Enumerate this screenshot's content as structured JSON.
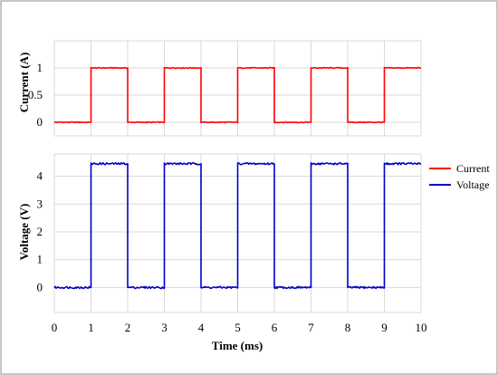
{
  "chart_data": [
    {
      "type": "line",
      "ylabel": "Current (A)",
      "xlabel": "",
      "ylim": [
        -0.25,
        1.5
      ],
      "yticks": [
        0,
        0.5,
        1
      ],
      "ytick_labels": [
        "0",
        "0.5",
        "1"
      ],
      "xlim": [
        0,
        10
      ],
      "grid": true,
      "series": [
        {
          "name": "Current",
          "color": "#ff0000",
          "x": [
            0,
            1,
            1,
            2,
            2,
            3,
            3,
            4,
            4,
            5,
            5,
            6,
            6,
            7,
            7,
            8,
            8,
            9,
            9,
            10
          ],
          "y": [
            0,
            0,
            1,
            1,
            0,
            0,
            1,
            1,
            0,
            0,
            1,
            1,
            0,
            0,
            1,
            1,
            0,
            0,
            1,
            1
          ]
        }
      ]
    },
    {
      "type": "line",
      "ylabel": "Voltage (V)",
      "xlabel": "Time (ms)",
      "ylim": [
        -0.9,
        4.8
      ],
      "yticks": [
        0,
        1,
        2,
        3,
        4
      ],
      "ytick_labels": [
        "0",
        "1",
        "2",
        "3",
        "4"
      ],
      "xlim": [
        0,
        10
      ],
      "xticks": [
        0,
        1,
        2,
        3,
        4,
        5,
        6,
        7,
        8,
        9,
        10
      ],
      "xtick_labels": [
        "0",
        "1",
        "2",
        "3",
        "4",
        "5",
        "6",
        "7",
        "8",
        "9",
        "10"
      ],
      "grid": true,
      "series": [
        {
          "name": "Voltage",
          "color": "#0000cc",
          "x": [
            0,
            1,
            1,
            2,
            2,
            3,
            3,
            4,
            4,
            5,
            5,
            6,
            6,
            7,
            7,
            8,
            8,
            9,
            9,
            10
          ],
          "y": [
            0,
            0,
            4.45,
            4.45,
            0,
            0,
            4.45,
            4.45,
            0,
            0,
            4.45,
            4.45,
            0,
            0,
            4.45,
            4.45,
            0,
            0,
            4.45,
            4.45
          ]
        }
      ]
    }
  ],
  "legend": {
    "placement": "right",
    "items": [
      {
        "label": "Current",
        "color": "#ff0000"
      },
      {
        "label": "Voltage",
        "color": "#0000cc"
      }
    ]
  }
}
